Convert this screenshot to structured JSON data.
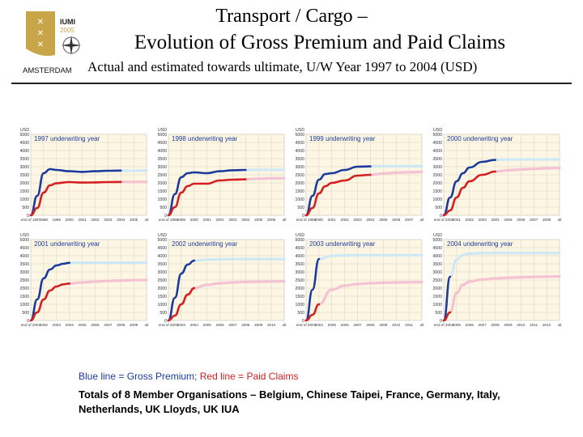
{
  "logo": {
    "text_top": "IUMI",
    "text_year": "2005",
    "text_city": "AMSTERDAM"
  },
  "header": {
    "title_line1": "Transport / Cargo –",
    "title_line2": "Evolution of Gross Premium and Paid Claims",
    "subtitle": "Actual and estimated towards ultimate, U/W Year 1997 to 2004 (USD)"
  },
  "legend": {
    "blue_text": "Blue line = Gross Premium;",
    "red_text": "Red line = Paid Claims"
  },
  "footnote": "Totals of 8 Member Organisations – Belgium, Chinese Taipei, France, Germany, Italy, Netherlands, UK Lloyds, UK IUA",
  "colors": {
    "premium": "#1a3a9c",
    "claims": "#d42020",
    "premium_est": "#cfe8f5",
    "claims_est": "#f4c2d2",
    "panel_bg": "#fdf6e3",
    "grid": "#d8d2c4"
  },
  "chart_data": [
    {
      "type": "line",
      "title": "1997 underwriting year",
      "ylabel": "USD",
      "ylim": [
        0,
        5000
      ],
      "yticks": [
        0,
        500,
        1000,
        1500,
        2000,
        2500,
        3000,
        3500,
        4000,
        4500,
        5000
      ],
      "categories": [
        "end of 1997",
        "1998",
        "1999",
        "2000",
        "2001",
        "2002",
        "2003",
        "2004",
        "2005",
        "ult"
      ],
      "series": [
        {
          "name": "Gross Premium",
          "x": [
            0,
            0.5,
            1,
            1.5,
            2,
            3,
            4,
            5,
            6,
            7
          ],
          "values": [
            0,
            1200,
            2600,
            2850,
            2800,
            2720,
            2680,
            2720,
            2750,
            2760
          ]
        },
        {
          "name": "Gross Premium (estimate)",
          "x": [
            7,
            8,
            9
          ],
          "values": [
            2760,
            2760,
            2760
          ]
        },
        {
          "name": "Paid Claims",
          "x": [
            0,
            0.5,
            1,
            1.5,
            2,
            3,
            4,
            5,
            6,
            7
          ],
          "values": [
            0,
            450,
            1400,
            1850,
            1980,
            2050,
            2020,
            2030,
            2050,
            2060
          ]
        },
        {
          "name": "Paid Claims (estimate)",
          "x": [
            7,
            8,
            9
          ],
          "values": [
            2060,
            2060,
            2060
          ]
        }
      ]
    },
    {
      "type": "line",
      "title": "1998 underwriting year",
      "ylabel": "USD",
      "ylim": [
        0,
        5000
      ],
      "yticks": [
        0,
        500,
        1000,
        1500,
        2000,
        2500,
        3000,
        3500,
        4000,
        4500,
        5000
      ],
      "categories": [
        "end of 1998",
        "1999",
        "2000",
        "2001",
        "2002",
        "2003",
        "2004",
        "2005",
        "2006",
        "ult"
      ],
      "series": [
        {
          "name": "Gross Premium",
          "x": [
            0,
            0.5,
            1,
            1.5,
            2,
            3,
            4,
            5,
            6
          ],
          "values": [
            0,
            1300,
            2350,
            2600,
            2650,
            2600,
            2720,
            2780,
            2800
          ]
        },
        {
          "name": "Gross Premium (estimate)",
          "x": [
            6,
            7,
            8,
            9
          ],
          "values": [
            2800,
            2810,
            2810,
            2810
          ]
        },
        {
          "name": "Paid Claims",
          "x": [
            0,
            0.5,
            1,
            1.5,
            2,
            3,
            4,
            5,
            6
          ],
          "values": [
            0,
            500,
            1400,
            1800,
            1950,
            1950,
            2150,
            2200,
            2220
          ]
        },
        {
          "name": "Paid Claims (estimate)",
          "x": [
            6,
            7,
            8,
            9
          ],
          "values": [
            2220,
            2260,
            2280,
            2290
          ]
        }
      ]
    },
    {
      "type": "line",
      "title": "1999 underwriting year",
      "ylabel": "USD",
      "ylim": [
        0,
        5000
      ],
      "yticks": [
        0,
        500,
        1000,
        1500,
        2000,
        2500,
        3000,
        3500,
        4000,
        4500,
        5000
      ],
      "categories": [
        "end of 1999",
        "2000",
        "2001",
        "2002",
        "2003",
        "2004",
        "2005",
        "2006",
        "2007",
        "ult"
      ],
      "series": [
        {
          "name": "Gross Premium",
          "x": [
            0,
            0.5,
            1,
            1.5,
            2,
            3,
            4,
            5
          ],
          "values": [
            0,
            1200,
            2200,
            2550,
            2600,
            2800,
            3000,
            3020
          ]
        },
        {
          "name": "Gross Premium (estimate)",
          "x": [
            5,
            6,
            7,
            8,
            9
          ],
          "values": [
            3020,
            3030,
            3030,
            3030,
            3030
          ]
        },
        {
          "name": "Paid Claims",
          "x": [
            0,
            0.5,
            1,
            1.5,
            2,
            3,
            4,
            5
          ],
          "values": [
            0,
            450,
            1350,
            1800,
            2000,
            2150,
            2450,
            2500
          ]
        },
        {
          "name": "Paid Claims (estimate)",
          "x": [
            5,
            6,
            7,
            8,
            9
          ],
          "values": [
            2500,
            2580,
            2630,
            2660,
            2680
          ]
        }
      ]
    },
    {
      "type": "line",
      "title": "2000 underwriting year",
      "ylabel": "USD",
      "ylim": [
        0,
        5000
      ],
      "yticks": [
        0,
        500,
        1000,
        1500,
        2000,
        2500,
        3000,
        3500,
        4000,
        4500,
        5000
      ],
      "categories": [
        "end of 2000",
        "2001",
        "2002",
        "2003",
        "2004",
        "2005",
        "2006",
        "2007",
        "2008",
        "ult"
      ],
      "series": [
        {
          "name": "Gross Premium",
          "x": [
            0,
            0.5,
            1,
            1.5,
            2,
            3,
            4
          ],
          "values": [
            0,
            1100,
            2100,
            2600,
            2950,
            3300,
            3420
          ]
        },
        {
          "name": "Gross Premium (estimate)",
          "x": [
            4,
            5,
            6,
            7,
            8,
            9
          ],
          "values": [
            3420,
            3450,
            3450,
            3450,
            3450,
            3450
          ]
        },
        {
          "name": "Paid Claims",
          "x": [
            0,
            0.5,
            1,
            1.5,
            2,
            3,
            4
          ],
          "values": [
            0,
            300,
            1100,
            1700,
            2100,
            2500,
            2700
          ]
        },
        {
          "name": "Paid Claims (estimate)",
          "x": [
            4,
            5,
            6,
            7,
            8,
            9
          ],
          "values": [
            2700,
            2780,
            2830,
            2870,
            2900,
            2920
          ]
        }
      ]
    },
    {
      "type": "line",
      "title": "2001 underwriting year",
      "ylabel": "USD",
      "ylim": [
        0,
        5000
      ],
      "yticks": [
        0,
        500,
        1000,
        1500,
        2000,
        2500,
        3000,
        3500,
        4000,
        4500,
        5000
      ],
      "categories": [
        "end of 2001",
        "2002",
        "2003",
        "2004",
        "2005",
        "2006",
        "2007",
        "2008",
        "2009",
        "ult"
      ],
      "series": [
        {
          "name": "Gross Premium",
          "x": [
            0,
            0.5,
            1,
            1.5,
            2,
            2.5,
            3
          ],
          "values": [
            0,
            1300,
            2600,
            3150,
            3400,
            3500,
            3560
          ]
        },
        {
          "name": "Gross Premium (estimate)",
          "x": [
            3,
            4,
            5,
            6,
            7,
            8,
            9
          ],
          "values": [
            3560,
            3570,
            3570,
            3570,
            3570,
            3570,
            3570
          ]
        },
        {
          "name": "Paid Claims",
          "x": [
            0,
            0.5,
            1,
            1.5,
            2,
            2.5,
            3
          ],
          "values": [
            0,
            500,
            1300,
            1850,
            2100,
            2230,
            2280
          ]
        },
        {
          "name": "Paid Claims (estimate)",
          "x": [
            3,
            4,
            5,
            6,
            7,
            8,
            9
          ],
          "values": [
            2280,
            2350,
            2400,
            2440,
            2470,
            2490,
            2500
          ]
        }
      ]
    },
    {
      "type": "line",
      "title": "2002 underwriting year",
      "ylabel": "USD",
      "ylim": [
        0,
        5000
      ],
      "yticks": [
        0,
        500,
        1000,
        1500,
        2000,
        2500,
        3000,
        3500,
        4000,
        4500,
        5000
      ],
      "categories": [
        "end of 2002",
        "2003",
        "2004",
        "2005",
        "2006",
        "2007",
        "2008",
        "2009",
        "2010",
        "ult"
      ],
      "series": [
        {
          "name": "Gross Premium",
          "x": [
            0,
            0.5,
            1,
            1.5,
            2
          ],
          "values": [
            0,
            1400,
            2900,
            3450,
            3700
          ]
        },
        {
          "name": "Gross Premium (estimate)",
          "x": [
            2,
            3,
            4,
            5,
            6,
            7,
            8,
            9
          ],
          "values": [
            3700,
            3760,
            3780,
            3790,
            3790,
            3790,
            3790,
            3790
          ]
        },
        {
          "name": "Paid Claims",
          "x": [
            0,
            0.5,
            1,
            1.5,
            2
          ],
          "values": [
            0,
            300,
            1000,
            1600,
            2000
          ]
        },
        {
          "name": "Paid Claims (estimate)",
          "x": [
            2,
            3,
            4,
            5,
            6,
            7,
            8,
            9
          ],
          "values": [
            2000,
            2200,
            2300,
            2350,
            2380,
            2400,
            2410,
            2420
          ]
        }
      ]
    },
    {
      "type": "line",
      "title": "2003 underwriting year",
      "ylabel": "USD",
      "ylim": [
        0,
        5000
      ],
      "yticks": [
        0,
        500,
        1000,
        1500,
        2000,
        2500,
        3000,
        3500,
        4000,
        4500,
        5000
      ],
      "categories": [
        "end of 2003",
        "2004",
        "2005",
        "2006",
        "2007",
        "2008",
        "2009",
        "2010",
        "2011",
        "ult"
      ],
      "series": [
        {
          "name": "Gross Premium",
          "x": [
            0,
            0.5,
            1
          ],
          "values": [
            0,
            1900,
            3800
          ]
        },
        {
          "name": "Gross Premium (estimate)",
          "x": [
            1,
            2,
            3,
            4,
            5,
            6,
            7,
            8,
            9
          ],
          "values": [
            3800,
            4000,
            4020,
            4030,
            4030,
            4030,
            4030,
            4030,
            4030
          ]
        },
        {
          "name": "Paid Claims",
          "x": [
            0,
            0.5,
            1
          ],
          "values": [
            0,
            350,
            1000
          ]
        },
        {
          "name": "Paid Claims (estimate)",
          "x": [
            1,
            2,
            3,
            4,
            5,
            6,
            7,
            8,
            9
          ],
          "values": [
            1000,
            1900,
            2150,
            2250,
            2300,
            2330,
            2350,
            2360,
            2370
          ]
        }
      ]
    },
    {
      "type": "line",
      "title": "2004 underwriting year",
      "ylabel": "USD",
      "ylim": [
        0,
        5000
      ],
      "yticks": [
        0,
        500,
        1000,
        1500,
        2000,
        2500,
        3000,
        3500,
        4000,
        4500,
        5000
      ],
      "categories": [
        "end of 2004",
        "2005",
        "2006",
        "2007",
        "2008",
        "2009",
        "2010",
        "2011",
        "2012",
        "ult"
      ],
      "series": [
        {
          "name": "Gross Premium",
          "x": [
            0,
            0.5
          ],
          "values": [
            0,
            2700
          ]
        },
        {
          "name": "Gross Premium (estimate)",
          "x": [
            0.5,
            1,
            1.5,
            2,
            3,
            4,
            5,
            6,
            7,
            8,
            9
          ],
          "values": [
            2700,
            3750,
            4050,
            4130,
            4160,
            4170,
            4170,
            4170,
            4170,
            4170,
            4170
          ]
        },
        {
          "name": "Paid Claims",
          "x": [
            0,
            0.5
          ],
          "values": [
            0,
            500
          ]
        },
        {
          "name": "Paid Claims (estimate)",
          "x": [
            0.5,
            1,
            1.5,
            2,
            3,
            4,
            5,
            6,
            7,
            8,
            9
          ],
          "values": [
            500,
            1700,
            2200,
            2400,
            2530,
            2600,
            2640,
            2670,
            2690,
            2710,
            2720
          ]
        }
      ]
    }
  ]
}
